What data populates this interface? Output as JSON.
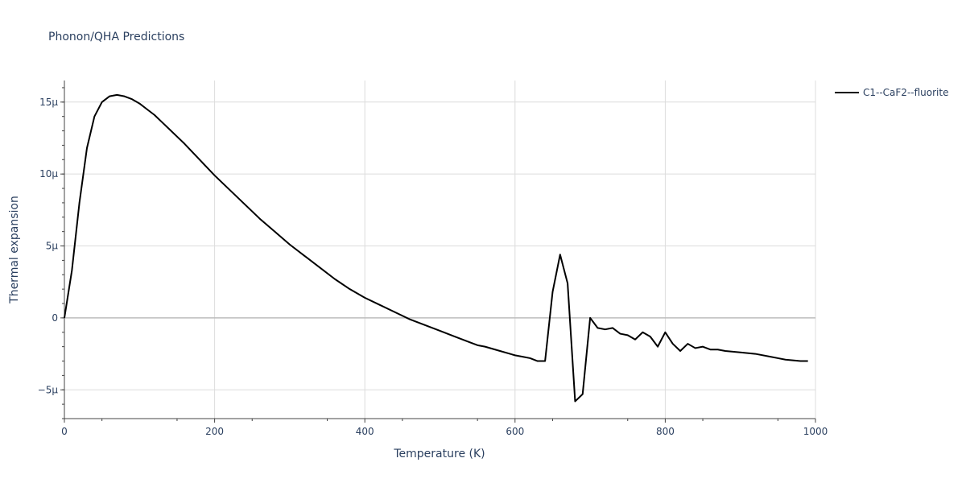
{
  "chart_data": {
    "type": "line",
    "title": "Phonon/QHA Predictions",
    "xlabel": "Temperature (K)",
    "ylabel": "Thermal expansion",
    "xlim": [
      0,
      1000
    ],
    "ylim": [
      -7e-06,
      1.65e-05
    ],
    "x_ticks": [
      {
        "value": 0,
        "label": "0"
      },
      {
        "value": 200,
        "label": "200"
      },
      {
        "value": 400,
        "label": "400"
      },
      {
        "value": 600,
        "label": "600"
      },
      {
        "value": 800,
        "label": "800"
      },
      {
        "value": 1000,
        "label": "1000"
      }
    ],
    "y_ticks": [
      {
        "value": -5e-06,
        "label": "−5μ"
      },
      {
        "value": 0,
        "label": "0"
      },
      {
        "value": 5e-06,
        "label": "5μ"
      },
      {
        "value": 1e-05,
        "label": "10μ"
      },
      {
        "value": 1.5e-05,
        "label": "15μ"
      }
    ],
    "grid": true,
    "legend_position": "top-right",
    "series": [
      {
        "name": "C1--CaF2--fluorite",
        "color": "#000000",
        "x": [
          0,
          10,
          20,
          30,
          40,
          50,
          60,
          70,
          80,
          90,
          100,
          110,
          120,
          130,
          140,
          150,
          160,
          180,
          200,
          220,
          240,
          260,
          280,
          300,
          320,
          340,
          360,
          380,
          400,
          420,
          440,
          460,
          480,
          500,
          520,
          540,
          550,
          560,
          580,
          600,
          610,
          620,
          630,
          640,
          650,
          660,
          670,
          680,
          690,
          700,
          710,
          720,
          730,
          740,
          750,
          760,
          770,
          780,
          790,
          800,
          810,
          820,
          830,
          840,
          850,
          860,
          870,
          880,
          900,
          920,
          940,
          950,
          960,
          980,
          990
        ],
        "y": [
          0,
          3.3e-06,
          8e-06,
          1.18e-05,
          1.4e-05,
          1.5e-05,
          1.54e-05,
          1.55e-05,
          1.54e-05,
          1.52e-05,
          1.49e-05,
          1.45e-05,
          1.41e-05,
          1.36e-05,
          1.31e-05,
          1.26e-05,
          1.21e-05,
          1.1e-05,
          9.9e-06,
          8.9e-06,
          7.9e-06,
          6.9e-06,
          6e-06,
          5.1e-06,
          4.3e-06,
          3.5e-06,
          2.7e-06,
          2e-06,
          1.4e-06,
          9e-07,
          4e-07,
          -1e-07,
          -5e-07,
          -9e-07,
          -1.3e-06,
          -1.7e-06,
          -1.9e-06,
          -2e-06,
          -2.3e-06,
          -2.6e-06,
          -2.7e-06,
          -2.8e-06,
          -3e-06,
          -3e-06,
          1.8e-06,
          4.4e-06,
          2.4e-06,
          -5.8e-06,
          -5.3e-06,
          0,
          -7e-07,
          -8e-07,
          -7e-07,
          -1.1e-06,
          -1.2e-06,
          -1.5e-06,
          -1e-06,
          -1.3e-06,
          -2e-06,
          -1e-06,
          -1.8e-06,
          -2.3e-06,
          -1.8e-06,
          -2.1e-06,
          -2e-06,
          -2.2e-06,
          -2.2e-06,
          -2.3e-06,
          -2.4e-06,
          -2.5e-06,
          -2.7e-06,
          -2.8e-06,
          -2.9e-06,
          -3e-06,
          -3e-06
        ]
      }
    ]
  }
}
